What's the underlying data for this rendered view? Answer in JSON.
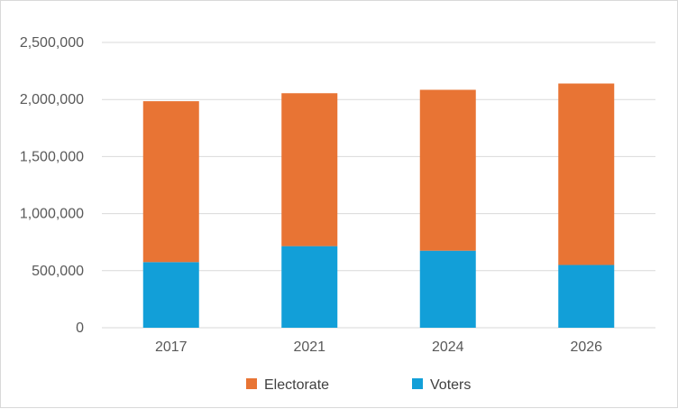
{
  "chart_data": {
    "type": "bar",
    "stacked": true,
    "categories": [
      "2017",
      "2021",
      "2024",
      "2026"
    ],
    "series": [
      {
        "name": "Voters",
        "values": [
          575000,
          715000,
          675000,
          550000
        ],
        "color": "#129fd8"
      },
      {
        "name": "Electorate",
        "values": [
          1410000,
          1340000,
          1410000,
          1590000
        ],
        "color": "#e87434"
      }
    ],
    "ylim": [
      0,
      2500000
    ],
    "yticks": [
      0,
      500000,
      1000000,
      1500000,
      2000000,
      2500000
    ],
    "ytick_labels": [
      "0",
      "500,000",
      "1,000,000",
      "1,500,000",
      "2,000,000",
      "2,500,000"
    ],
    "grid": true,
    "legend_position": "bottom",
    "legend": [
      {
        "label": "Electorate",
        "color": "#e87434"
      },
      {
        "label": "Voters",
        "color": "#129fd8"
      }
    ]
  }
}
